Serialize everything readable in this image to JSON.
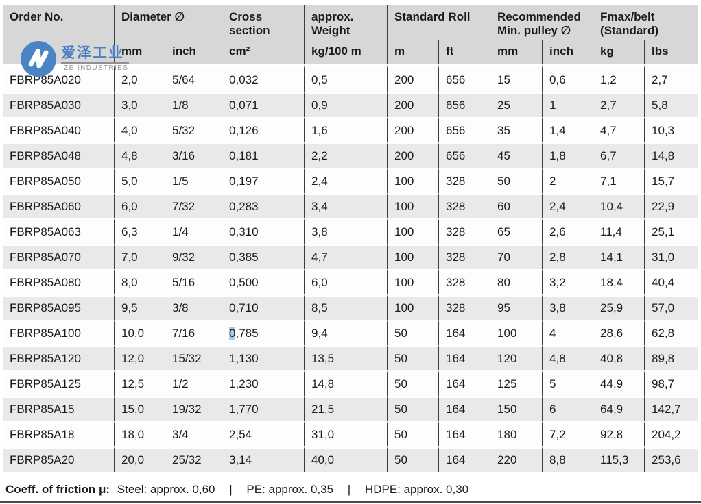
{
  "logo": {
    "chinese_name": "爱泽工业",
    "latin_name": "IZE INDUSTRIES",
    "mark_color": "#4b84c4"
  },
  "table": {
    "header": {
      "groups": [
        {
          "label": "Order No."
        },
        {
          "label": "Diameter ∅"
        },
        {
          "label": "Cross\nsection"
        },
        {
          "label": "approx.\nWeight"
        },
        {
          "label": "Standard Roll"
        },
        {
          "label": "Recommended\nMin. pulley ∅"
        },
        {
          "label": "Fmax/belt\n(Standard)"
        }
      ],
      "subs": [
        "mm",
        "inch",
        "cm²",
        "kg/100 m",
        "m",
        "ft",
        "mm",
        "inch",
        "kg",
        "lbs"
      ]
    },
    "rows": [
      [
        "FBRP85A020",
        "2,0",
        "5/64",
        "0,032",
        "0,5",
        "200",
        "656",
        "15",
        "0,6",
        "1,2",
        "2,7"
      ],
      [
        "FBRP85A030",
        "3,0",
        "1/8",
        "0,071",
        "0,9",
        "200",
        "656",
        "25",
        "1",
        "2,7",
        "5,8"
      ],
      [
        "FBRP85A040",
        "4,0",
        "5/32",
        "0,126",
        "1,6",
        "200",
        "656",
        "35",
        "1,4",
        "4,7",
        "10,3"
      ],
      [
        "FBRP85A048",
        "4,8",
        "3/16",
        "0,181",
        "2,2",
        "200",
        "656",
        "45",
        "1,8",
        "6,7",
        "14,8"
      ],
      [
        "FBRP85A050",
        "5,0",
        "1/5",
        "0,197",
        "2,4",
        "100",
        "328",
        "50",
        "2",
        "7,1",
        "15,7"
      ],
      [
        "FBRP85A060",
        "6,0",
        "7/32",
        "0,283",
        "3,4",
        "100",
        "328",
        "60",
        "2,4",
        "10,4",
        "22,9"
      ],
      [
        "FBRP85A063",
        "6,3",
        "1/4",
        "0,310",
        "3,8",
        "100",
        "328",
        "65",
        "2,6",
        "11,4",
        "25,1"
      ],
      [
        "FBRP85A070",
        "7,0",
        "9/32",
        "0,385",
        "4,7",
        "100",
        "328",
        "70",
        "2,8",
        "14,1",
        "31,0"
      ],
      [
        "FBRP85A080",
        "8,0",
        "5/16",
        "0,500",
        "6,0",
        "100",
        "328",
        "80",
        "3,2",
        "18,4",
        "40,4"
      ],
      [
        "FBRP85A095",
        "9,5",
        "3/8",
        "0,710",
        "8,5",
        "100",
        "328",
        "95",
        "3,8",
        "25,9",
        "57,0"
      ],
      [
        "FBRP85A100",
        "10,0",
        "7/16",
        "0,785",
        "9,4",
        "50",
        "164",
        "100",
        "4",
        "28,6",
        "62,8"
      ],
      [
        "FBRP85A120",
        "12,0",
        "15/32",
        "1,130",
        "13,5",
        "50",
        "164",
        "120",
        "4,8",
        "40,8",
        "89,8"
      ],
      [
        "FBRP85A125",
        "12,5",
        "1/2",
        "1,230",
        "14,8",
        "50",
        "164",
        "125",
        "5",
        "44,9",
        "98,7"
      ],
      [
        "FBRP85A15",
        "15,0",
        "19/32",
        "1,770",
        "21,5",
        "50",
        "164",
        "150",
        "6",
        "64,9",
        "142,7"
      ],
      [
        "FBRP85A18",
        "18,0",
        "3/4",
        "2,54",
        "31,0",
        "50",
        "164",
        "180",
        "7,2",
        "92,8",
        "204,2"
      ],
      [
        "FBRP85A20",
        "20,0",
        "25/32",
        "3,14",
        "40,0",
        "50",
        "164",
        "220",
        "8,8",
        "115,3",
        "253,6"
      ]
    ],
    "selection": {
      "row_index": 10,
      "col_index": 3,
      "selected_text": "0"
    }
  },
  "footer": {
    "label": "Coeff. of friction μ:",
    "items": [
      "Steel: approx. 0,60",
      "PE: approx. 0,35",
      "HDPE: approx. 0,30"
    ],
    "separator": "|"
  },
  "colors": {
    "header_bg": "#d7d7d7",
    "row_alt_bg": "#e9e9e9",
    "grid_line": "#3c3c3c",
    "selection_highlight": "#a9cde9",
    "bottom_rule": "#4a4a4a",
    "logo_blue": "#4b84c4"
  }
}
